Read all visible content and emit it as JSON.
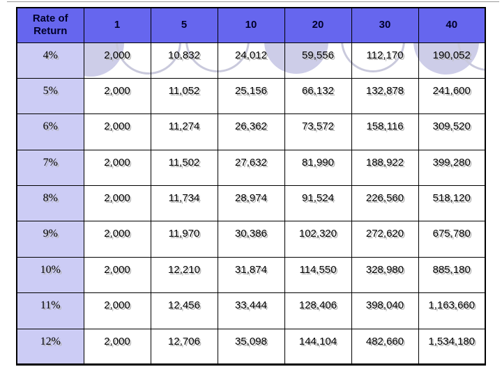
{
  "slide": {
    "table": {
      "header": {
        "rate_label": "Rate of Return",
        "year_columns": [
          "1",
          "5",
          "10",
          "20",
          "30",
          "40"
        ]
      },
      "rows": [
        {
          "label": "4%",
          "values": [
            "2,000",
            "10,832",
            "24,012",
            "59,556",
            "112,170",
            "190,052"
          ]
        },
        {
          "label": "5%",
          "values": [
            "2,000",
            "11,052",
            "25,156",
            "66,132",
            "132,878",
            "241,600"
          ]
        },
        {
          "label": "6%",
          "values": [
            "2,000",
            "11,274",
            "26,362",
            "73,572",
            "158,116",
            "309,520"
          ]
        },
        {
          "label": "7%",
          "values": [
            "2,000",
            "11,502",
            "27,632",
            "81,990",
            "188,922",
            "399,280"
          ]
        },
        {
          "label": "8%",
          "values": [
            "2,000",
            "11,734",
            "28,974",
            "91,524",
            "226,560",
            "518,120"
          ]
        },
        {
          "label": "9%",
          "values": [
            "2,000",
            "11,970",
            "30,386",
            "102,320",
            "272,620",
            "675,780"
          ]
        },
        {
          "label": "10%",
          "values": [
            "2,000",
            "12,210",
            "31,874",
            "114,550",
            "328,980",
            "885,180"
          ]
        },
        {
          "label": "11%",
          "values": [
            "2,000",
            "12,456",
            "33,444",
            "128,406",
            "398,040",
            "1,163,660"
          ]
        },
        {
          "label": "12%",
          "values": [
            "2,000",
            "12,706",
            "35,098",
            "144,104",
            "482,660",
            "1,534,180"
          ]
        }
      ]
    },
    "colors": {
      "header_bg": "#6666ee",
      "header_text": "#000028",
      "row_label_bg": "#ccccf5",
      "cell_text": "#000000",
      "text_shadow": "#b3b3b3",
      "table_border": "#000000",
      "circle_fill": "#cdcde8",
      "circle_ring": "#c9c9dc",
      "top_divider": "#999999"
    }
  },
  "chart_data": {
    "type": "table",
    "title": "",
    "columns": [
      "Rate of Return",
      "1",
      "5",
      "10",
      "20",
      "30",
      "40"
    ],
    "rows": [
      [
        "4%",
        2000,
        10832,
        24012,
        59556,
        112170,
        190052
      ],
      [
        "5%",
        2000,
        11052,
        25156,
        66132,
        132878,
        241600
      ],
      [
        "6%",
        2000,
        11274,
        26362,
        73572,
        158116,
        309520
      ],
      [
        "7%",
        2000,
        11502,
        27632,
        81990,
        188922,
        399280
      ],
      [
        "8%",
        2000,
        11734,
        28974,
        91524,
        226560,
        518120
      ],
      [
        "9%",
        2000,
        11970,
        30386,
        102320,
        272620,
        675780
      ],
      [
        "10%",
        2000,
        12210,
        31874,
        114550,
        328980,
        885180
      ],
      [
        "11%",
        2000,
        12456,
        33444,
        128406,
        398040,
        1163660
      ],
      [
        "12%",
        2000,
        12706,
        35098,
        144104,
        482660,
        1534180
      ]
    ]
  }
}
